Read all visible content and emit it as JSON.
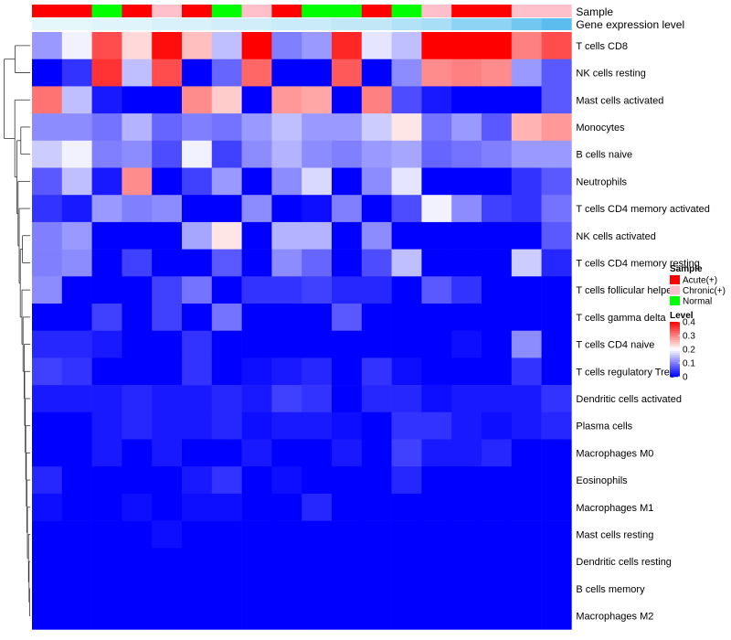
{
  "chart_data": {
    "type": "heatmap",
    "title": "",
    "annotation_tracks": [
      "Sample",
      "Gene expression level"
    ],
    "sample_groups": [
      "Acute(+)",
      "Acute(+)",
      "Normal",
      "Acute(+)",
      "Chronic(+)",
      "Acute(+)",
      "Normal",
      "Chronic(+)",
      "Acute(+)",
      "Normal",
      "Normal",
      "Acute(+)",
      "Normal",
      "Chronic(+)",
      "Acute(+)",
      "Acute(+)",
      "Chronic(+)",
      "Chronic(+)"
    ],
    "expression_levels": [
      0.15,
      0.15,
      0.3,
      0.3,
      0.35,
      0.35,
      0.4,
      0.4,
      0.45,
      0.45,
      0.5,
      0.5,
      0.6,
      0.65,
      0.75,
      0.75,
      0.85,
      0.9
    ],
    "expression_track_colors": [
      "#e6f7fc",
      "#e6f7fc",
      "#dff4fb",
      "#dff4fb",
      "#d8f1fb",
      "#d8f1fb",
      "#d1eefa",
      "#d1eefa",
      "#caebf9",
      "#caebf9",
      "#c2e8f8",
      "#c2e8f8",
      "#b2e2f7",
      "#a8def6",
      "#8fd3f4",
      "#8fd3f4",
      "#72c7f1",
      "#5bbdee"
    ],
    "rows": [
      "T cells CD8",
      "NK cells resting",
      "Mast cells activated",
      "Monocytes",
      "B cells naive",
      "Neutrophils",
      "T cells CD4 memory activated",
      "NK cells activated",
      "T cells CD4 memory resting",
      "T cells follicular helper",
      "T cells gamma delta",
      "T cells CD4 naive",
      "T cells regulatory  Tregs",
      "Dendritic cells activated",
      "Plasma cells",
      "Macrophages M0",
      "Eosinophils",
      "Macrophages M1",
      "Mast cells resting",
      "Dendritic cells resting",
      "B cells memory",
      "Macrophages M2"
    ],
    "values": [
      [
        0.12,
        0.19,
        0.34,
        0.23,
        0.39,
        0.25,
        0.15,
        0.4,
        0.1,
        0.12,
        0.37,
        0.18,
        0.15,
        0.4,
        0.4,
        0.4,
        0.3,
        0.34
      ],
      [
        0.0,
        0.04,
        0.36,
        0.15,
        0.34,
        0.0,
        0.08,
        0.32,
        0.0,
        0.0,
        0.33,
        0.0,
        0.11,
        0.29,
        0.3,
        0.29,
        0.12,
        0.07
      ],
      [
        0.31,
        0.15,
        0.02,
        0.0,
        0.0,
        0.29,
        0.24,
        0.0,
        0.28,
        0.27,
        0.0,
        0.3,
        0.06,
        0.02,
        0.0,
        0.0,
        0.0,
        0.07
      ],
      [
        0.11,
        0.11,
        0.09,
        0.14,
        0.08,
        0.1,
        0.09,
        0.12,
        0.15,
        0.12,
        0.12,
        0.16,
        0.22,
        0.09,
        0.12,
        0.07,
        0.26,
        0.28
      ],
      [
        0.16,
        0.19,
        0.1,
        0.11,
        0.06,
        0.19,
        0.05,
        0.11,
        0.14,
        0.11,
        0.1,
        0.12,
        0.13,
        0.08,
        0.09,
        0.1,
        0.12,
        0.12
      ],
      [
        0.07,
        0.15,
        0.02,
        0.29,
        0.0,
        0.05,
        0.12,
        0.0,
        0.11,
        0.17,
        0.0,
        0.11,
        0.18,
        0.0,
        0.0,
        0.0,
        0.04,
        0.07
      ],
      [
        0.04,
        0.02,
        0.12,
        0.1,
        0.11,
        0.0,
        0.0,
        0.11,
        0.0,
        0.01,
        0.1,
        0.0,
        0.06,
        0.19,
        0.11,
        0.05,
        0.04,
        0.09
      ],
      [
        0.1,
        0.12,
        0.0,
        0.0,
        0.0,
        0.13,
        0.22,
        0.0,
        0.14,
        0.14,
        0.0,
        0.11,
        0.0,
        0.0,
        0.0,
        0.0,
        0.0,
        0.07
      ],
      [
        0.1,
        0.11,
        0.0,
        0.05,
        0.0,
        0.0,
        0.07,
        0.0,
        0.11,
        0.08,
        0.0,
        0.06,
        0.15,
        0.0,
        0.0,
        0.0,
        0.16,
        0.03
      ],
      [
        0.11,
        0.0,
        0.0,
        0.0,
        0.05,
        0.09,
        0.0,
        0.04,
        0.04,
        0.05,
        0.03,
        0.03,
        0.0,
        0.07,
        0.04,
        0.0,
        0.0,
        0.0
      ],
      [
        0.0,
        0.0,
        0.05,
        0.0,
        0.05,
        0.0,
        0.09,
        0.0,
        0.0,
        0.0,
        0.07,
        0.0,
        0.0,
        0.0,
        0.0,
        0.0,
        0.0,
        0.0
      ],
      [
        0.03,
        0.03,
        0.02,
        0.0,
        0.0,
        0.04,
        0.0,
        0.0,
        0.0,
        0.0,
        0.0,
        0.0,
        0.0,
        0.0,
        0.01,
        0.0,
        0.11,
        0.0
      ],
      [
        0.05,
        0.04,
        0.0,
        0.0,
        0.0,
        0.04,
        0.0,
        0.01,
        0.02,
        0.03,
        0.0,
        0.04,
        0.01,
        0.0,
        0.0,
        0.0,
        0.04,
        0.0
      ],
      [
        0.02,
        0.02,
        0.02,
        0.03,
        0.02,
        0.02,
        0.03,
        0.02,
        0.05,
        0.04,
        0.0,
        0.03,
        0.03,
        0.01,
        0.02,
        0.02,
        0.02,
        0.04
      ],
      [
        0.0,
        0.0,
        0.02,
        0.03,
        0.02,
        0.02,
        0.03,
        0.01,
        0.02,
        0.02,
        0.01,
        0.0,
        0.04,
        0.04,
        0.02,
        0.01,
        0.02,
        0.03
      ],
      [
        0.0,
        0.0,
        0.02,
        0.0,
        0.02,
        0.0,
        0.0,
        0.02,
        0.0,
        0.0,
        0.02,
        0.0,
        0.05,
        0.02,
        0.02,
        0.03,
        0.0,
        0.0
      ],
      [
        0.03,
        0.0,
        0.0,
        0.0,
        0.0,
        0.02,
        0.04,
        0.0,
        0.01,
        0.0,
        0.0,
        0.0,
        0.03,
        0.0,
        0.0,
        0.0,
        0.0,
        0.0
      ],
      [
        0.01,
        0.0,
        0.0,
        0.01,
        0.0,
        0.01,
        0.01,
        0.0,
        0.0,
        0.03,
        0.0,
        0.0,
        0.0,
        0.0,
        0.0,
        0.0,
        0.0,
        0.0
      ],
      [
        0.0,
        0.0,
        0.0,
        0.0,
        0.01,
        0.0,
        0.0,
        0.0,
        0.0,
        0.0,
        0.0,
        0.0,
        0.0,
        0.0,
        0.0,
        0.0,
        0.0,
        0.0
      ],
      [
        0.0,
        0.0,
        0.0,
        0.0,
        0.0,
        0.0,
        0.0,
        0.0,
        0.0,
        0.0,
        0.0,
        0.0,
        0.0,
        0.0,
        0.0,
        0.0,
        0.0,
        0.0
      ],
      [
        0.0,
        0.0,
        0.0,
        0.0,
        0.0,
        0.0,
        0.0,
        0.0,
        0.0,
        0.0,
        0.0,
        0.0,
        0.0,
        0.0,
        0.0,
        0.0,
        0.0,
        0.0
      ],
      [
        0.0,
        0.0,
        0.0,
        0.0,
        0.0,
        0.0,
        0.0,
        0.0,
        0.0,
        0.0,
        0.0,
        0.0,
        0.0,
        0.0,
        0.0,
        0.0,
        0.0,
        0.0
      ]
    ],
    "value_range": [
      0,
      0.4
    ],
    "color_scale": {
      "low": "#0000ff",
      "mid": "#ffffff",
      "high": "#ff0000"
    },
    "legend": {
      "sample_title": "Sample",
      "sample_entries": [
        {
          "label": "Acute(+)",
          "color": "#ff0000"
        },
        {
          "label": "Chronic(+)",
          "color": "#ffc0cb"
        },
        {
          "label": "Normal",
          "color": "#00ff00"
        }
      ],
      "level_title": "Level",
      "level_ticks": [
        0.4,
        0.3,
        0.2,
        0.1,
        0
      ],
      "placement": "right"
    },
    "dendrogram": "left"
  }
}
